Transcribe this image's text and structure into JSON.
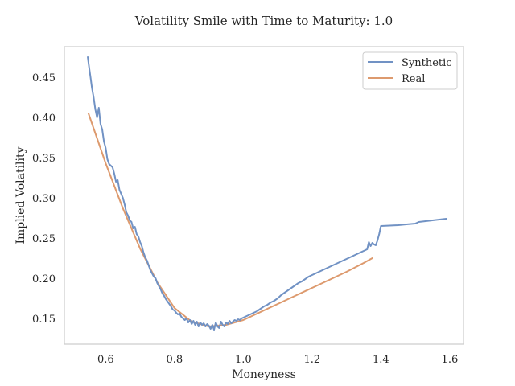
{
  "chart_data": {
    "type": "line",
    "title": "Volatility Smile with Time to Maturity: 1.0",
    "xlabel": "Moneyness",
    "ylabel": "Implied Volatility",
    "xlim": [
      0.48,
      1.64
    ],
    "ylim": [
      0.118,
      0.488
    ],
    "xticks": [
      0.6,
      0.8,
      1.0,
      1.2,
      1.4,
      1.6
    ],
    "xtick_labels": [
      "0.6",
      "0.8",
      "1.0",
      "1.2",
      "1.4",
      "1.6"
    ],
    "yticks": [
      0.15,
      0.2,
      0.25,
      0.3,
      0.35,
      0.4,
      0.45
    ],
    "ytick_labels": [
      "0.15",
      "0.20",
      "0.25",
      "0.30",
      "0.35",
      "0.40",
      "0.45"
    ],
    "grid": false,
    "legend_position": "top-right",
    "series": [
      {
        "name": "Synthetic",
        "color": "#7192c4",
        "x": [
          0.548,
          0.552,
          0.556,
          0.56,
          0.565,
          0.57,
          0.575,
          0.58,
          0.585,
          0.59,
          0.595,
          0.6,
          0.605,
          0.61,
          0.615,
          0.62,
          0.625,
          0.63,
          0.635,
          0.64,
          0.645,
          0.65,
          0.655,
          0.66,
          0.665,
          0.67,
          0.675,
          0.68,
          0.685,
          0.69,
          0.695,
          0.7,
          0.705,
          0.71,
          0.715,
          0.72,
          0.725,
          0.73,
          0.735,
          0.74,
          0.745,
          0.75,
          0.755,
          0.76,
          0.765,
          0.77,
          0.775,
          0.78,
          0.785,
          0.79,
          0.795,
          0.8,
          0.805,
          0.81,
          0.815,
          0.82,
          0.825,
          0.83,
          0.835,
          0.84,
          0.845,
          0.85,
          0.855,
          0.86,
          0.865,
          0.87,
          0.875,
          0.88,
          0.885,
          0.89,
          0.895,
          0.9,
          0.905,
          0.91,
          0.915,
          0.92,
          0.925,
          0.93,
          0.935,
          0.94,
          0.945,
          0.95,
          0.955,
          0.96,
          0.965,
          0.97,
          0.975,
          0.98,
          0.985,
          0.99,
          0.995,
          1.0,
          1.01,
          1.02,
          1.03,
          1.04,
          1.05,
          1.06,
          1.07,
          1.08,
          1.09,
          1.1,
          1.11,
          1.12,
          1.13,
          1.14,
          1.15,
          1.16,
          1.17,
          1.18,
          1.19,
          1.2,
          1.21,
          1.22,
          1.23,
          1.24,
          1.25,
          1.26,
          1.27,
          1.28,
          1.29,
          1.3,
          1.31,
          1.32,
          1.33,
          1.34,
          1.35,
          1.36,
          1.365,
          1.37,
          1.375,
          1.38,
          1.385,
          1.39,
          1.395,
          1.4,
          1.45,
          1.5,
          1.51,
          1.59
        ],
        "values": [
          0.475,
          0.462,
          0.45,
          0.437,
          0.425,
          0.41,
          0.4,
          0.412,
          0.392,
          0.385,
          0.37,
          0.362,
          0.348,
          0.342,
          0.34,
          0.338,
          0.33,
          0.32,
          0.322,
          0.31,
          0.305,
          0.3,
          0.292,
          0.282,
          0.278,
          0.272,
          0.27,
          0.262,
          0.264,
          0.255,
          0.252,
          0.245,
          0.24,
          0.232,
          0.226,
          0.222,
          0.216,
          0.21,
          0.206,
          0.202,
          0.2,
          0.194,
          0.19,
          0.186,
          0.181,
          0.178,
          0.174,
          0.171,
          0.168,
          0.165,
          0.161,
          0.16,
          0.157,
          0.155,
          0.156,
          0.152,
          0.15,
          0.148,
          0.15,
          0.145,
          0.148,
          0.143,
          0.147,
          0.142,
          0.146,
          0.14,
          0.145,
          0.142,
          0.144,
          0.14,
          0.143,
          0.141,
          0.137,
          0.142,
          0.136,
          0.145,
          0.14,
          0.138,
          0.146,
          0.142,
          0.14,
          0.145,
          0.143,
          0.147,
          0.144,
          0.146,
          0.148,
          0.147,
          0.149,
          0.148,
          0.15,
          0.151,
          0.153,
          0.155,
          0.157,
          0.159,
          0.162,
          0.165,
          0.167,
          0.17,
          0.172,
          0.175,
          0.179,
          0.182,
          0.185,
          0.188,
          0.191,
          0.194,
          0.196,
          0.199,
          0.202,
          0.204,
          0.206,
          0.208,
          0.21,
          0.212,
          0.214,
          0.216,
          0.218,
          0.22,
          0.222,
          0.224,
          0.226,
          0.228,
          0.23,
          0.232,
          0.234,
          0.236,
          0.245,
          0.24,
          0.244,
          0.242,
          0.241,
          0.247,
          0.255,
          0.265,
          0.266,
          0.268,
          0.27,
          0.274
        ]
      },
      {
        "name": "Real",
        "color": "#dd9a6e",
        "x": [
          0.55,
          0.6,
          0.65,
          0.7,
          0.75,
          0.8,
          0.85,
          0.9,
          0.95,
          1.0,
          1.05,
          1.1,
          1.15,
          1.2,
          1.25,
          1.3,
          1.35,
          1.375
        ],
        "values": [
          0.405,
          0.343,
          0.287,
          0.237,
          0.195,
          0.163,
          0.146,
          0.14,
          0.142,
          0.148,
          0.158,
          0.168,
          0.178,
          0.188,
          0.198,
          0.208,
          0.219,
          0.225
        ]
      }
    ]
  }
}
